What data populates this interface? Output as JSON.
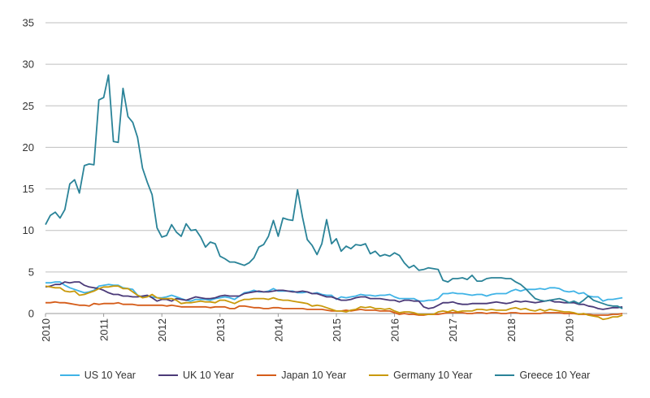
{
  "chart_data": {
    "type": "line",
    "title": "",
    "xlabel": "",
    "ylabel": "",
    "xlim": [
      2010,
      2020
    ],
    "ylim": [
      0,
      35
    ],
    "grid": true,
    "legend_position": "bottom",
    "x_ticks": [
      "2010",
      "2011",
      "2012",
      "2013",
      "2014",
      "2015",
      "2016",
      "2017",
      "2018",
      "2019"
    ],
    "y_ticks": [
      "0",
      "5",
      "10",
      "15",
      "20",
      "25",
      "30",
      "35"
    ],
    "x": [
      2010,
      2010.083,
      2010.167,
      2010.25,
      2010.333,
      2010.417,
      2010.5,
      2010.583,
      2010.667,
      2010.75,
      2010.833,
      2010.917,
      2011,
      2011.083,
      2011.167,
      2011.25,
      2011.333,
      2011.417,
      2011.5,
      2011.583,
      2011.667,
      2011.75,
      2011.833,
      2011.917,
      2012,
      2012.083,
      2012.167,
      2012.25,
      2012.333,
      2012.417,
      2012.5,
      2012.583,
      2012.667,
      2012.75,
      2012.833,
      2012.917,
      2013,
      2013.083,
      2013.167,
      2013.25,
      2013.333,
      2013.417,
      2013.5,
      2013.583,
      2013.667,
      2013.75,
      2013.833,
      2013.917,
      2014,
      2014.083,
      2014.167,
      2014.25,
      2014.333,
      2014.417,
      2014.5,
      2014.583,
      2014.667,
      2014.75,
      2014.833,
      2014.917,
      2015,
      2015.083,
      2015.167,
      2015.25,
      2015.333,
      2015.417,
      2015.5,
      2015.583,
      2015.667,
      2015.75,
      2015.833,
      2015.917,
      2016,
      2016.083,
      2016.167,
      2016.25,
      2016.333,
      2016.417,
      2016.5,
      2016.583,
      2016.667,
      2016.75,
      2016.833,
      2016.917,
      2017,
      2017.083,
      2017.167,
      2017.25,
      2017.333,
      2017.417,
      2017.5,
      2017.583,
      2017.667,
      2017.75,
      2017.833,
      2017.917,
      2018,
      2018.083,
      2018.167,
      2018.25,
      2018.333,
      2018.417,
      2018.5,
      2018.583,
      2018.667,
      2018.75,
      2018.833,
      2018.917,
      2019,
      2019.083,
      2019.167,
      2019.25,
      2019.333,
      2019.417,
      2019.5,
      2019.583,
      2019.667,
      2019.75,
      2019.833,
      2019.917
    ],
    "series": [
      {
        "name": "US 10 Year",
        "color": "#3fb3e6",
        "values": [
          3.7,
          3.7,
          3.8,
          3.8,
          3.4,
          3.1,
          2.9,
          2.7,
          2.5,
          2.6,
          2.8,
          3.3,
          3.4,
          3.5,
          3.4,
          3.4,
          3.1,
          3.0,
          2.9,
          2.2,
          2.0,
          2.1,
          2.0,
          1.9,
          1.9,
          2.0,
          2.2,
          2.0,
          1.8,
          1.6,
          1.5,
          1.7,
          1.7,
          1.7,
          1.6,
          1.8,
          1.9,
          2.0,
          1.9,
          1.7,
          2.1,
          2.5,
          2.6,
          2.8,
          2.6,
          2.6,
          2.7,
          3.0,
          2.7,
          2.7,
          2.7,
          2.7,
          2.5,
          2.5,
          2.6,
          2.4,
          2.5,
          2.3,
          2.2,
          2.2,
          1.7,
          2.0,
          1.9,
          2.0,
          2.1,
          2.3,
          2.2,
          2.2,
          2.1,
          2.2,
          2.2,
          2.3,
          2.0,
          1.8,
          1.8,
          1.8,
          1.8,
          1.5,
          1.5,
          1.6,
          1.6,
          1.8,
          2.4,
          2.4,
          2.5,
          2.4,
          2.4,
          2.3,
          2.2,
          2.3,
          2.3,
          2.1,
          2.3,
          2.4,
          2.4,
          2.4,
          2.7,
          2.9,
          2.7,
          2.9,
          2.9,
          2.9,
          3.0,
          2.9,
          3.1,
          3.1,
          3.0,
          2.7,
          2.6,
          2.7,
          2.4,
          2.5,
          2.1,
          2.0,
          2.0,
          1.5,
          1.7,
          1.7,
          1.8,
          1.9
        ]
      },
      {
        "name": "UK 10 Year",
        "color": "#4b3a78",
        "values": [
          3.2,
          3.3,
          3.5,
          3.5,
          3.8,
          3.7,
          3.8,
          3.8,
          3.4,
          3.2,
          3.1,
          3.0,
          2.8,
          2.5,
          2.3,
          2.3,
          2.1,
          2.1,
          2.0,
          2.0,
          2.1,
          2.2,
          1.9,
          1.5,
          1.7,
          1.7,
          1.5,
          1.8,
          1.7,
          1.6,
          1.8,
          2.0,
          1.9,
          1.8,
          1.8,
          1.9,
          2.1,
          2.2,
          2.1,
          2.1,
          2.1,
          2.4,
          2.5,
          2.6,
          2.7,
          2.6,
          2.6,
          2.7,
          2.8,
          2.8,
          2.7,
          2.6,
          2.6,
          2.7,
          2.6,
          2.4,
          2.4,
          2.2,
          2.0,
          2.0,
          1.8,
          1.6,
          1.6,
          1.7,
          1.9,
          2.0,
          2.0,
          1.8,
          1.8,
          1.8,
          1.7,
          1.6,
          1.6,
          1.4,
          1.6,
          1.6,
          1.5,
          1.5,
          0.8,
          0.6,
          0.7,
          1.0,
          1.3,
          1.3,
          1.4,
          1.2,
          1.1,
          1.1,
          1.2,
          1.2,
          1.2,
          1.2,
          1.3,
          1.4,
          1.3,
          1.2,
          1.3,
          1.5,
          1.4,
          1.5,
          1.4,
          1.3,
          1.4,
          1.5,
          1.6,
          1.4,
          1.4,
          1.3,
          1.3,
          1.3,
          1.1,
          1.1,
          0.9,
          0.8,
          0.6,
          0.5,
          0.6,
          0.7,
          0.7,
          0.8
        ]
      },
      {
        "name": "Japan 10 Year",
        "color": "#d55c19",
        "values": [
          1.3,
          1.3,
          1.4,
          1.3,
          1.3,
          1.2,
          1.1,
          1.0,
          1.0,
          0.9,
          1.2,
          1.1,
          1.2,
          1.2,
          1.2,
          1.3,
          1.1,
          1.1,
          1.1,
          1.0,
          1.0,
          1.0,
          1.0,
          1.0,
          1.0,
          0.9,
          1.0,
          0.9,
          0.8,
          0.8,
          0.8,
          0.8,
          0.8,
          0.8,
          0.7,
          0.8,
          0.8,
          0.8,
          0.6,
          0.6,
          0.9,
          0.9,
          0.8,
          0.7,
          0.7,
          0.6,
          0.6,
          0.7,
          0.7,
          0.6,
          0.6,
          0.6,
          0.6,
          0.6,
          0.5,
          0.5,
          0.5,
          0.5,
          0.4,
          0.3,
          0.3,
          0.3,
          0.4,
          0.3,
          0.4,
          0.5,
          0.4,
          0.4,
          0.4,
          0.3,
          0.3,
          0.3,
          0.1,
          -0.1,
          0.0,
          -0.1,
          -0.1,
          -0.2,
          -0.2,
          -0.1,
          -0.1,
          -0.1,
          0.0,
          0.1,
          0.1,
          0.1,
          0.1,
          0.0,
          0.0,
          0.1,
          0.1,
          0.0,
          0.1,
          0.1,
          0.0,
          0.0,
          0.1,
          0.1,
          0.0,
          0.0,
          0.0,
          0.0,
          0.0,
          0.1,
          0.1,
          0.1,
          0.1,
          0.0,
          0.0,
          0.0,
          -0.1,
          -0.1,
          -0.1,
          -0.2,
          -0.2,
          -0.2,
          -0.2,
          -0.1,
          -0.1,
          0.0
        ]
      },
      {
        "name": "Germany 10 Year",
        "color": "#c9990b",
        "values": [
          3.3,
          3.2,
          3.1,
          3.1,
          2.7,
          2.6,
          2.7,
          2.2,
          2.3,
          2.5,
          2.7,
          3.0,
          3.2,
          3.2,
          3.3,
          3.3,
          3.0,
          3.0,
          2.6,
          2.2,
          1.9,
          2.0,
          2.3,
          1.9,
          1.8,
          1.8,
          1.8,
          1.6,
          1.2,
          1.3,
          1.3,
          1.4,
          1.5,
          1.4,
          1.4,
          1.3,
          1.6,
          1.6,
          1.4,
          1.2,
          1.5,
          1.7,
          1.7,
          1.8,
          1.8,
          1.8,
          1.7,
          1.9,
          1.7,
          1.6,
          1.6,
          1.5,
          1.4,
          1.3,
          1.2,
          0.9,
          1.0,
          0.9,
          0.7,
          0.5,
          0.3,
          0.3,
          0.2,
          0.4,
          0.5,
          0.8,
          0.7,
          0.8,
          0.6,
          0.6,
          0.5,
          0.6,
          0.3,
          0.1,
          0.2,
          0.2,
          0.1,
          -0.1,
          -0.1,
          -0.1,
          -0.1,
          0.2,
          0.3,
          0.2,
          0.4,
          0.2,
          0.3,
          0.3,
          0.3,
          0.5,
          0.5,
          0.4,
          0.5,
          0.4,
          0.4,
          0.4,
          0.6,
          0.7,
          0.5,
          0.6,
          0.4,
          0.3,
          0.5,
          0.3,
          0.5,
          0.4,
          0.3,
          0.2,
          0.2,
          0.1,
          -0.1,
          0.0,
          -0.2,
          -0.3,
          -0.4,
          -0.7,
          -0.6,
          -0.4,
          -0.4,
          -0.2
        ]
      },
      {
        "name": "Greece 10 Year",
        "color": "#2a8398",
        "values": [
          10.7,
          11.8,
          12.2,
          11.5,
          12.5,
          15.6,
          16.1,
          14.5,
          17.8,
          18.0,
          17.9,
          25.7,
          26.0,
          28.7,
          20.7,
          20.6,
          27.1,
          23.7,
          23.0,
          21.2,
          17.5,
          15.8,
          14.3,
          10.3,
          9.2,
          9.4,
          10.7,
          9.8,
          9.3,
          10.8,
          10.0,
          10.1,
          9.2,
          8.0,
          8.6,
          8.4,
          6.9,
          6.6,
          6.2,
          6.2,
          6.0,
          5.8,
          6.1,
          6.7,
          8.0,
          8.3,
          9.3,
          11.2,
          9.3,
          11.5,
          11.3,
          11.2,
          14.9,
          11.6,
          8.9,
          8.2,
          7.1,
          8.4,
          11.3,
          8.4,
          9.0,
          7.5,
          8.1,
          7.8,
          8.3,
          8.2,
          8.4,
          7.2,
          7.5,
          6.9,
          7.1,
          6.9,
          7.3,
          7.0,
          6.1,
          5.5,
          5.8,
          5.2,
          5.3,
          5.5,
          5.4,
          5.3,
          4.0,
          3.8,
          4.2,
          4.2,
          4.3,
          4.1,
          4.6,
          3.9,
          3.9,
          4.2,
          4.3,
          4.3,
          4.3,
          4.2,
          4.2,
          3.8,
          3.5,
          3.0,
          2.4,
          1.8,
          1.6,
          1.5,
          1.6,
          1.7,
          1.8,
          1.6,
          1.3,
          1.5,
          1.2,
          1.6,
          2.1,
          1.6,
          1.4,
          1.2,
          1.0,
          0.9,
          0.9,
          0.6
        ]
      }
    ]
  }
}
